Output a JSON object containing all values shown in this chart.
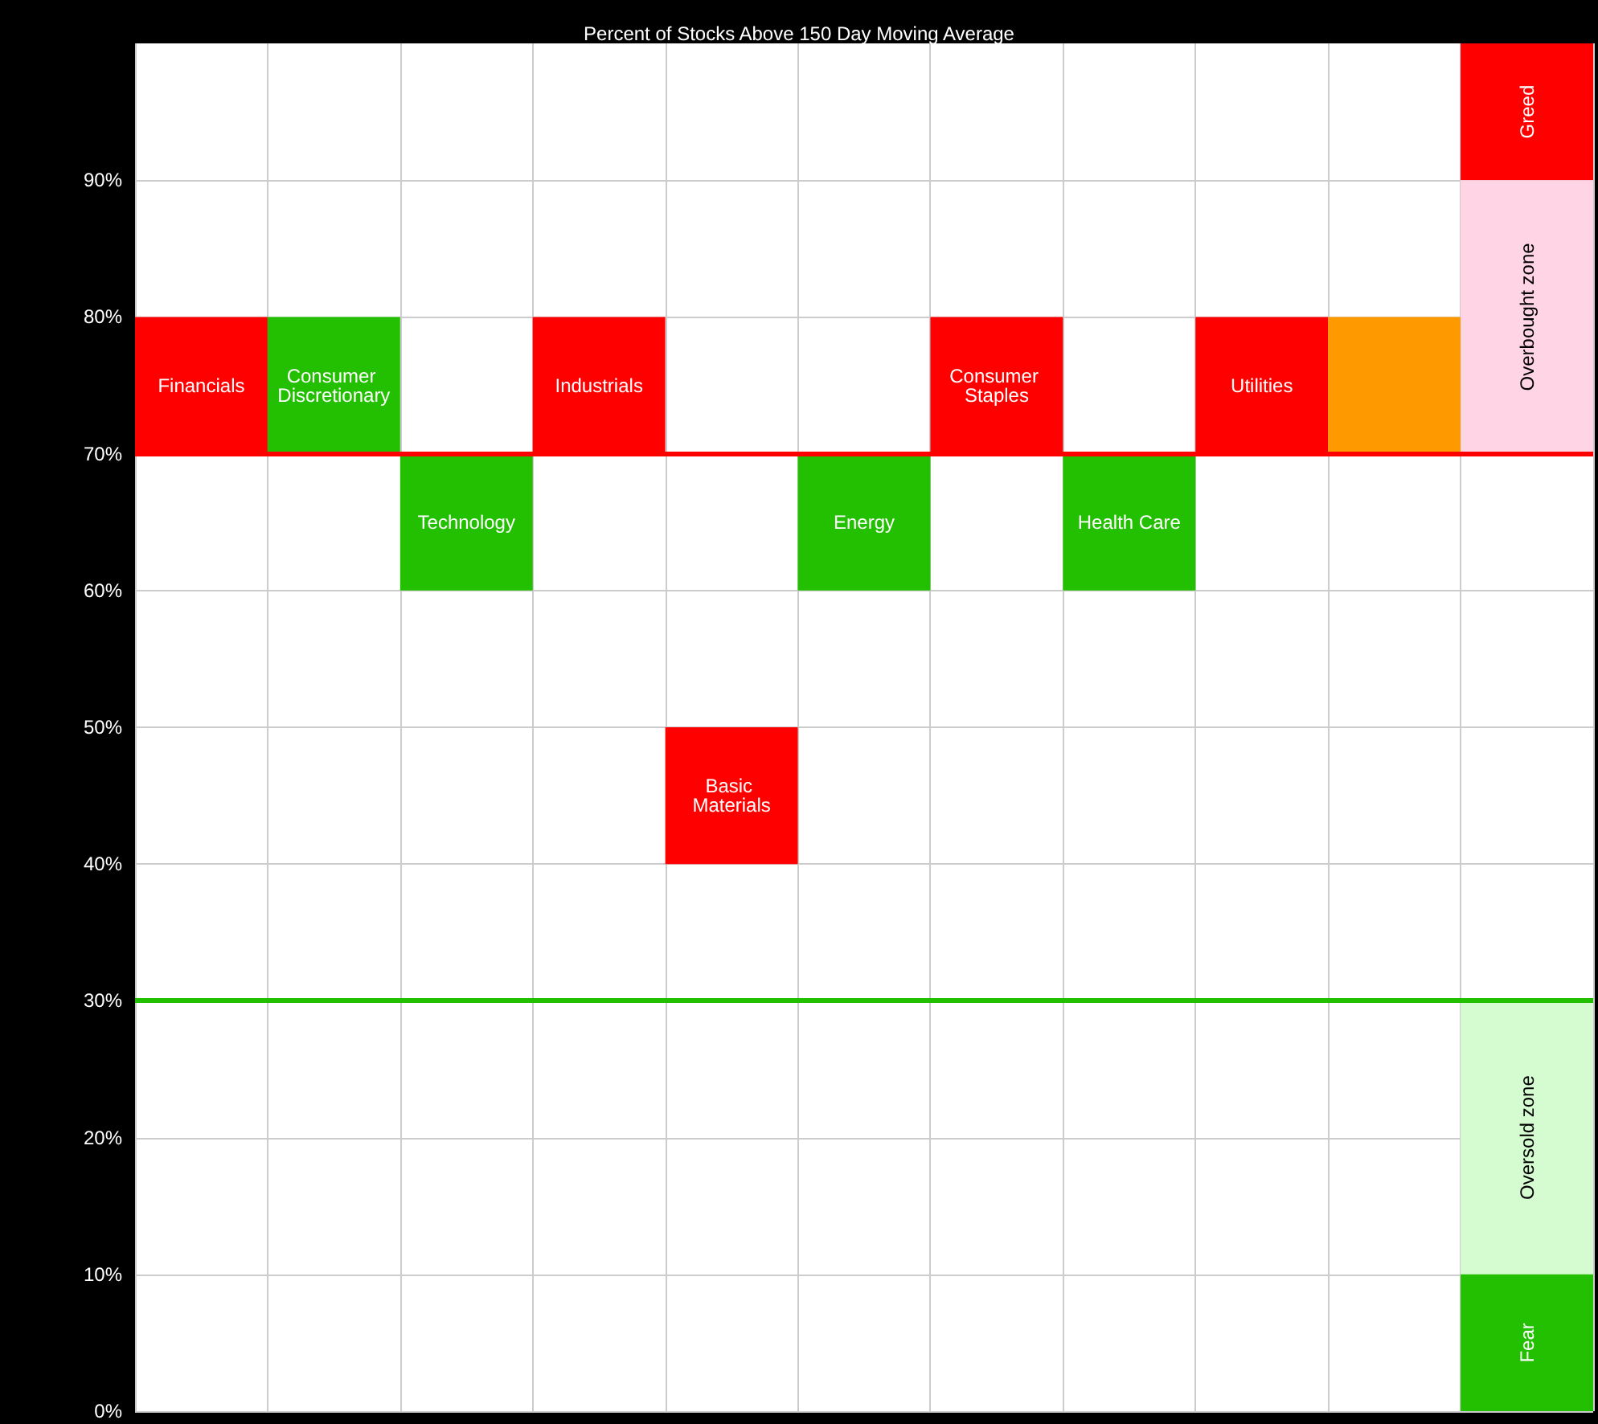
{
  "chart_data": {
    "type": "bar",
    "title": "Percent of Stocks Above 150 Day Moving Average",
    "categories": [
      null,
      null,
      null,
      null,
      null,
      null,
      null,
      null,
      null,
      null,
      null
    ],
    "series": [
      {
        "values": [
          10,
          10,
          10,
          10,
          10,
          10,
          10,
          10,
          10,
          10,
          null
        ],
        "base": [
          70,
          70,
          60,
          70,
          40,
          60,
          70,
          60,
          70,
          70,
          null
        ],
        "colors": [
          "#ff0000",
          "#22c000",
          "#22c000",
          "#ff0000",
          "#ff0000",
          "#22c000",
          "#ff0000",
          "#22c000",
          "#ff0000",
          "#ff9900",
          null
        ],
        "value_labels": [
          "Financials",
          "Consumer Discretionary",
          "Technology",
          "Industrials",
          "Basic Materials",
          "Energy",
          "Consumer Staples",
          "Health Care",
          "Utilities",
          null,
          null
        ]
      },
      {
        "values": [
          null,
          null,
          null,
          null,
          null,
          null,
          null,
          null,
          null,
          null,
          10
        ],
        "base": [
          null,
          null,
          null,
          null,
          null,
          null,
          null,
          null,
          null,
          null,
          90
        ],
        "color": "#ff0000",
        "value_labels": [
          null,
          null,
          null,
          null,
          null,
          null,
          null,
          null,
          null,
          null,
          "Greed"
        ]
      },
      {
        "values": [
          null,
          null,
          null,
          null,
          null,
          null,
          null,
          null,
          null,
          null,
          20
        ],
        "base": [
          null,
          null,
          null,
          null,
          null,
          null,
          null,
          null,
          null,
          null,
          70
        ],
        "color": "#ffd5e5",
        "value_labels": [
          null,
          null,
          null,
          null,
          null,
          null,
          null,
          null,
          null,
          null,
          "Overbought zone"
        ]
      },
      {
        "values": [
          null,
          null,
          null,
          null,
          null,
          null,
          null,
          null,
          null,
          null,
          20
        ],
        "base": [
          null,
          null,
          null,
          null,
          null,
          null,
          null,
          null,
          null,
          null,
          10
        ],
        "color": "#d5fcd0",
        "value_labels": [
          null,
          null,
          null,
          null,
          null,
          null,
          null,
          null,
          null,
          null,
          "Oversold zone"
        ]
      },
      {
        "values": [
          null,
          null,
          null,
          null,
          null,
          null,
          null,
          null,
          null,
          null,
          10
        ],
        "base": [
          null,
          null,
          null,
          null,
          null,
          null,
          null,
          null,
          null,
          null,
          0
        ],
        "color": "#22c000",
        "value_labels": [
          null,
          null,
          null,
          null,
          null,
          null,
          null,
          null,
          null,
          null,
          "Fear"
        ]
      }
    ],
    "ylim": [
      0,
      100
    ],
    "yticks": [
      {
        "value": 0,
        "label": "0%"
      },
      {
        "value": 10,
        "label": "10%"
      },
      {
        "value": 20,
        "label": "20%"
      },
      {
        "value": 30,
        "label": "30%"
      },
      {
        "value": 40,
        "label": "40%"
      },
      {
        "value": 50,
        "label": "50%"
      },
      {
        "value": 60,
        "label": "60%"
      },
      {
        "value": 70,
        "label": "70%"
      },
      {
        "value": 80,
        "label": "80%"
      },
      {
        "value": 90,
        "label": "90%"
      }
    ],
    "ref_lines": [
      {
        "axis": "y",
        "value": 70,
        "color": "#ff0000"
      },
      {
        "axis": "y",
        "value": 30,
        "color": "#22c000"
      }
    ],
    "grid": true
  }
}
